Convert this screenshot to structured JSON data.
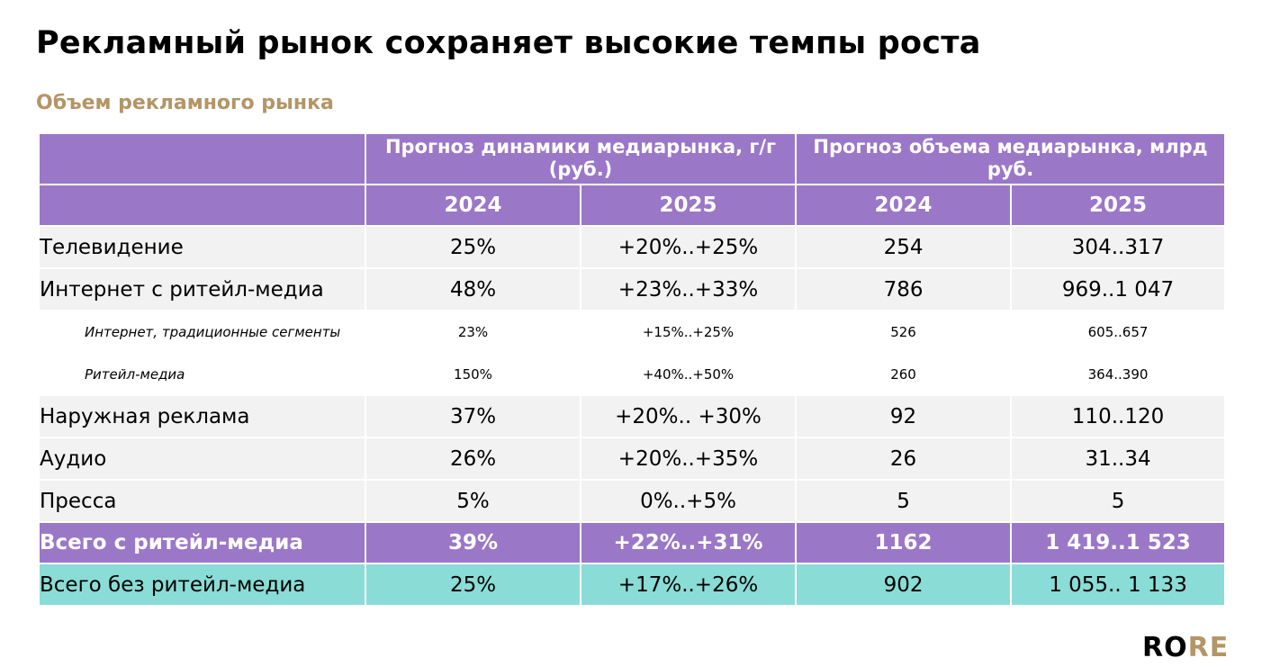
{
  "header": {
    "title": "Рекламный рынок сохраняет высокие темпы роста",
    "subtitle": "Объем рекламного рынка"
  },
  "table": {
    "group_headers": [
      "Прогноз динамики медиарынка, г/г (руб.)",
      "Прогноз объема медиарынка, млрд руб."
    ],
    "year_headers": [
      "2024",
      "2025",
      "2024",
      "2025"
    ],
    "rows": [
      [
        "Телевидение",
        "25%",
        "+20%..+25%",
        "254",
        "304..317"
      ],
      [
        "Интернет с ритейл-медиа",
        "48%",
        "+23%..+33%",
        "786",
        "969..1 047"
      ],
      [
        "Интернет, традиционные сегменты",
        "23%",
        "+15%..+25%",
        "526",
        "605..657"
      ],
      [
        "Ритейл-медиа",
        "150%",
        "+40%..+50%",
        "260",
        "364..390"
      ],
      [
        "Наружная реклама",
        "37%",
        "+20%.. +30%",
        "92",
        "110..120"
      ],
      [
        "Аудио",
        "26%",
        "+20%..+35%",
        "26",
        "31..34"
      ],
      [
        "Пресса",
        "5%",
        "0%..+5%",
        "5",
        "5"
      ],
      [
        "Всего с ритейл-медиа",
        "39%",
        "+22%..+31%",
        "1162",
        "1 419..1 523"
      ],
      [
        "Всего без ритейл-медиа",
        "25%",
        "+17%..+26%",
        "902",
        "1 055.. 1 133"
      ]
    ]
  },
  "logo": {
    "part1": "RO",
    "part2": "RE"
  }
}
